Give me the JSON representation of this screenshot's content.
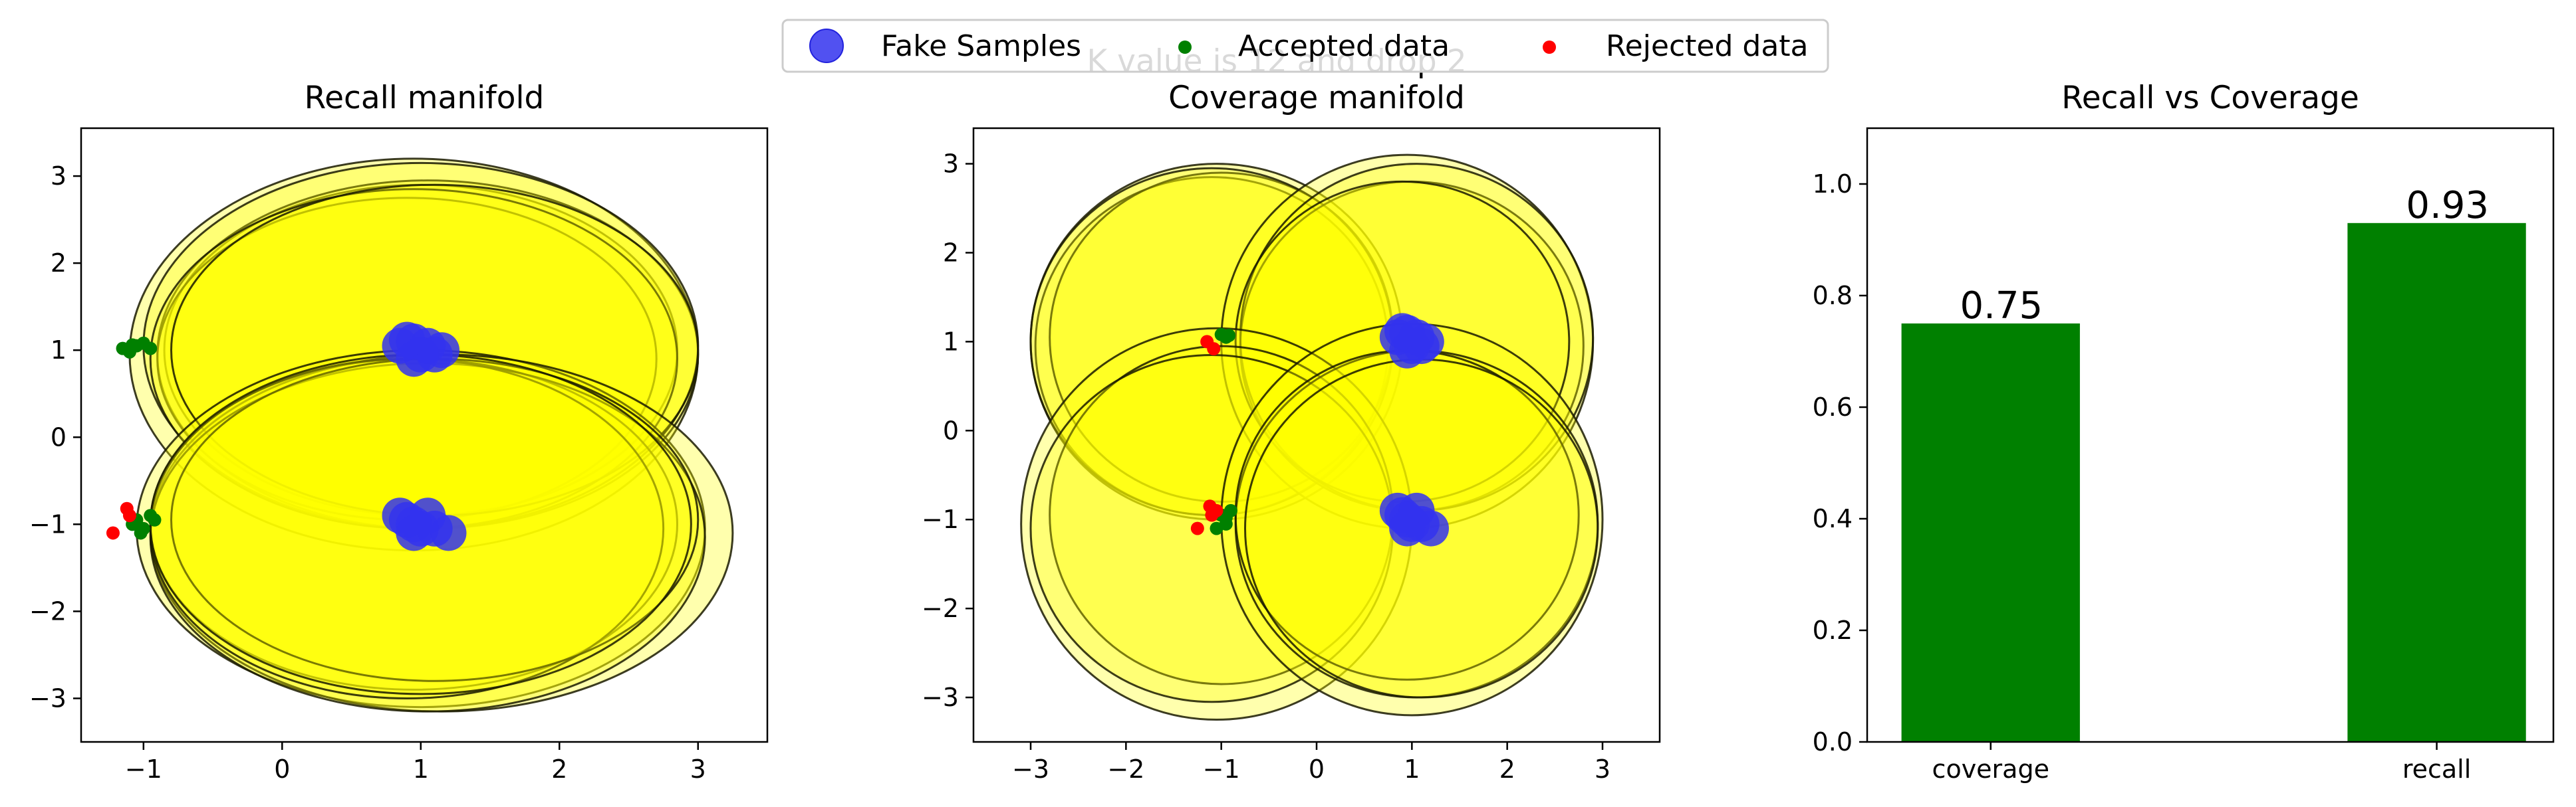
{
  "figure": {
    "suptitle": "K value is 12 and drop 2"
  },
  "legend": {
    "placement": "top-center",
    "entries": [
      {
        "label": "Fake Samples",
        "color": "#3333ee",
        "marker": "large-circle"
      },
      {
        "label": "Accepted data",
        "color": "#008000",
        "marker": "small-circle"
      },
      {
        "label": "Rejected data",
        "color": "#ff0000",
        "marker": "small-circle"
      }
    ]
  },
  "chart_data": [
    {
      "type": "scatter",
      "title": "Recall manifold",
      "xlim": [
        -1.45,
        3.5
      ],
      "ylim": [
        -3.5,
        3.55
      ],
      "xticks": [
        -1,
        0,
        1,
        2,
        3
      ],
      "yticks": [
        -3,
        -2,
        -1,
        0,
        1,
        2,
        3
      ],
      "grid": false,
      "manifold_color": "#ffff00",
      "manifold_ellipses": [
        {
          "cx": 0.95,
          "cy": 0.95,
          "rx": 2.05,
          "ry": 2.25
        },
        {
          "cx": 1.0,
          "cy": 1.0,
          "rx": 1.85,
          "ry": 1.9
        },
        {
          "cx": 1.05,
          "cy": 0.95,
          "rx": 1.95,
          "ry": 2.0
        },
        {
          "cx": 0.9,
          "cy": 0.9,
          "rx": 1.8,
          "ry": 1.85
        },
        {
          "cx": 1.0,
          "cy": 1.05,
          "rx": 2.0,
          "ry": 2.1
        },
        {
          "cx": 0.95,
          "cy": 0.9,
          "rx": 1.9,
          "ry": 1.95
        },
        {
          "cx": 1.1,
          "cy": 1.0,
          "rx": 1.9,
          "ry": 1.9
        },
        {
          "cx": 1.0,
          "cy": -1.05,
          "rx": 2.05,
          "ry": 2.05
        },
        {
          "cx": 1.15,
          "cy": -1.1,
          "rx": 2.1,
          "ry": 2.05
        },
        {
          "cx": 0.95,
          "cy": -1.0,
          "rx": 1.9,
          "ry": 1.9
        },
        {
          "cx": 1.05,
          "cy": -1.15,
          "rx": 2.0,
          "ry": 2.0
        },
        {
          "cx": 0.9,
          "cy": -1.05,
          "rx": 1.85,
          "ry": 1.95
        },
        {
          "cx": 1.1,
          "cy": -0.95,
          "rx": 1.9,
          "ry": 1.85
        },
        {
          "cx": 1.0,
          "cy": -1.0,
          "rx": 1.95,
          "ry": 1.95
        }
      ],
      "fake_samples": [
        [
          0.85,
          1.05
        ],
        [
          0.95,
          1.1
        ],
        [
          1.0,
          0.95
        ],
        [
          1.05,
          1.05
        ],
        [
          1.15,
          1.0
        ],
        [
          0.95,
          0.9
        ],
        [
          1.1,
          0.95
        ],
        [
          0.9,
          1.12
        ],
        [
          0.85,
          -0.9
        ],
        [
          0.95,
          -1.0
        ],
        [
          1.05,
          -0.9
        ],
        [
          1.0,
          -1.05
        ],
        [
          1.2,
          -1.1
        ],
        [
          0.95,
          -1.1
        ],
        [
          1.1,
          -1.05
        ],
        [
          0.9,
          -0.95
        ]
      ],
      "accepted": [
        [
          -1.15,
          1.02
        ],
        [
          -1.1,
          0.98
        ],
        [
          -1.05,
          1.05
        ],
        [
          -1.0,
          1.08
        ],
        [
          -0.95,
          1.02
        ],
        [
          -1.08,
          1.06
        ],
        [
          -1.05,
          -0.95
        ],
        [
          -1.0,
          -1.05
        ],
        [
          -0.95,
          -0.9
        ],
        [
          -1.02,
          -1.1
        ],
        [
          -0.92,
          -0.95
        ],
        [
          -1.08,
          -1.0
        ]
      ],
      "rejected": [
        [
          -1.12,
          -0.82
        ],
        [
          -1.1,
          -0.9
        ],
        [
          -1.22,
          -1.1
        ]
      ]
    },
    {
      "type": "scatter",
      "title": "Coverage manifold",
      "xlim": [
        -3.6,
        3.6
      ],
      "ylim": [
        -3.5,
        3.4
      ],
      "xticks": [
        -3,
        -2,
        -1,
        0,
        1,
        2,
        3
      ],
      "yticks": [
        -3,
        -2,
        -1,
        0,
        1,
        2,
        3
      ],
      "grid": false,
      "manifold_color": "#ffff00",
      "manifold_ellipses": [
        {
          "cx": -1.05,
          "cy": 1.0,
          "rx": 1.95,
          "ry": 2.0
        },
        {
          "cx": -1.1,
          "cy": 0.95,
          "rx": 1.85,
          "ry": 1.9
        },
        {
          "cx": -1.0,
          "cy": 1.05,
          "rx": 1.8,
          "ry": 1.85
        },
        {
          "cx": -1.1,
          "cy": 1.0,
          "rx": 1.9,
          "ry": 1.95
        },
        {
          "cx": 0.95,
          "cy": 1.0,
          "rx": 1.95,
          "ry": 2.1
        },
        {
          "cx": 1.0,
          "cy": 0.95,
          "rx": 1.8,
          "ry": 1.85
        },
        {
          "cx": 1.05,
          "cy": 1.05,
          "rx": 1.85,
          "ry": 1.95
        },
        {
          "cx": 0.9,
          "cy": 1.0,
          "rx": 1.75,
          "ry": 1.8
        },
        {
          "cx": -1.05,
          "cy": -1.05,
          "rx": 2.05,
          "ry": 2.2
        },
        {
          "cx": -1.0,
          "cy": -0.95,
          "rx": 1.8,
          "ry": 1.9
        },
        {
          "cx": -1.1,
          "cy": -1.1,
          "rx": 1.9,
          "ry": 1.95
        },
        {
          "cx": 1.0,
          "cy": -1.0,
          "rx": 2.0,
          "ry": 2.2
        },
        {
          "cx": 1.05,
          "cy": -1.05,
          "rx": 1.9,
          "ry": 1.95
        },
        {
          "cx": 0.95,
          "cy": -0.95,
          "rx": 1.8,
          "ry": 1.85
        },
        {
          "cx": 1.1,
          "cy": -1.1,
          "rx": 1.85,
          "ry": 1.9
        }
      ],
      "fake_samples": [
        [
          0.85,
          1.05
        ],
        [
          0.95,
          1.1
        ],
        [
          1.0,
          0.95
        ],
        [
          1.05,
          1.05
        ],
        [
          1.15,
          1.0
        ],
        [
          0.95,
          0.9
        ],
        [
          1.1,
          0.95
        ],
        [
          0.9,
          1.12
        ],
        [
          0.85,
          -0.9
        ],
        [
          0.95,
          -1.0
        ],
        [
          1.05,
          -0.9
        ],
        [
          1.0,
          -1.05
        ],
        [
          1.2,
          -1.1
        ],
        [
          0.95,
          -1.1
        ],
        [
          1.1,
          -1.05
        ],
        [
          0.9,
          -0.95
        ]
      ],
      "accepted": [
        [
          -1.0,
          1.08
        ],
        [
          -0.95,
          1.05
        ],
        [
          -0.92,
          1.07
        ],
        [
          -1.0,
          -0.95
        ],
        [
          -0.95,
          -1.05
        ],
        [
          -0.9,
          -0.9
        ],
        [
          -1.05,
          -1.1
        ],
        [
          -0.95,
          -0.98
        ]
      ],
      "rejected": [
        [
          -1.15,
          1.0
        ],
        [
          -1.08,
          0.92
        ],
        [
          -1.12,
          -0.85
        ],
        [
          -1.05,
          -0.9
        ],
        [
          -1.25,
          -1.1
        ],
        [
          -1.1,
          -0.95
        ]
      ]
    },
    {
      "type": "bar",
      "title": "Recall vs Coverage",
      "categories": [
        "coverage",
        "recall"
      ],
      "values": [
        0.75,
        0.93
      ],
      "data_labels": [
        "0.75",
        "0.93"
      ],
      "bar_color": "#008000",
      "ylim": [
        0.0,
        1.1
      ],
      "yticks": [
        0.0,
        0.2,
        0.4,
        0.6,
        0.8,
        1.0
      ],
      "ytick_labels": [
        "0.0",
        "0.2",
        "0.4",
        "0.6",
        "0.8",
        "1.0"
      ],
      "grid": false
    }
  ]
}
